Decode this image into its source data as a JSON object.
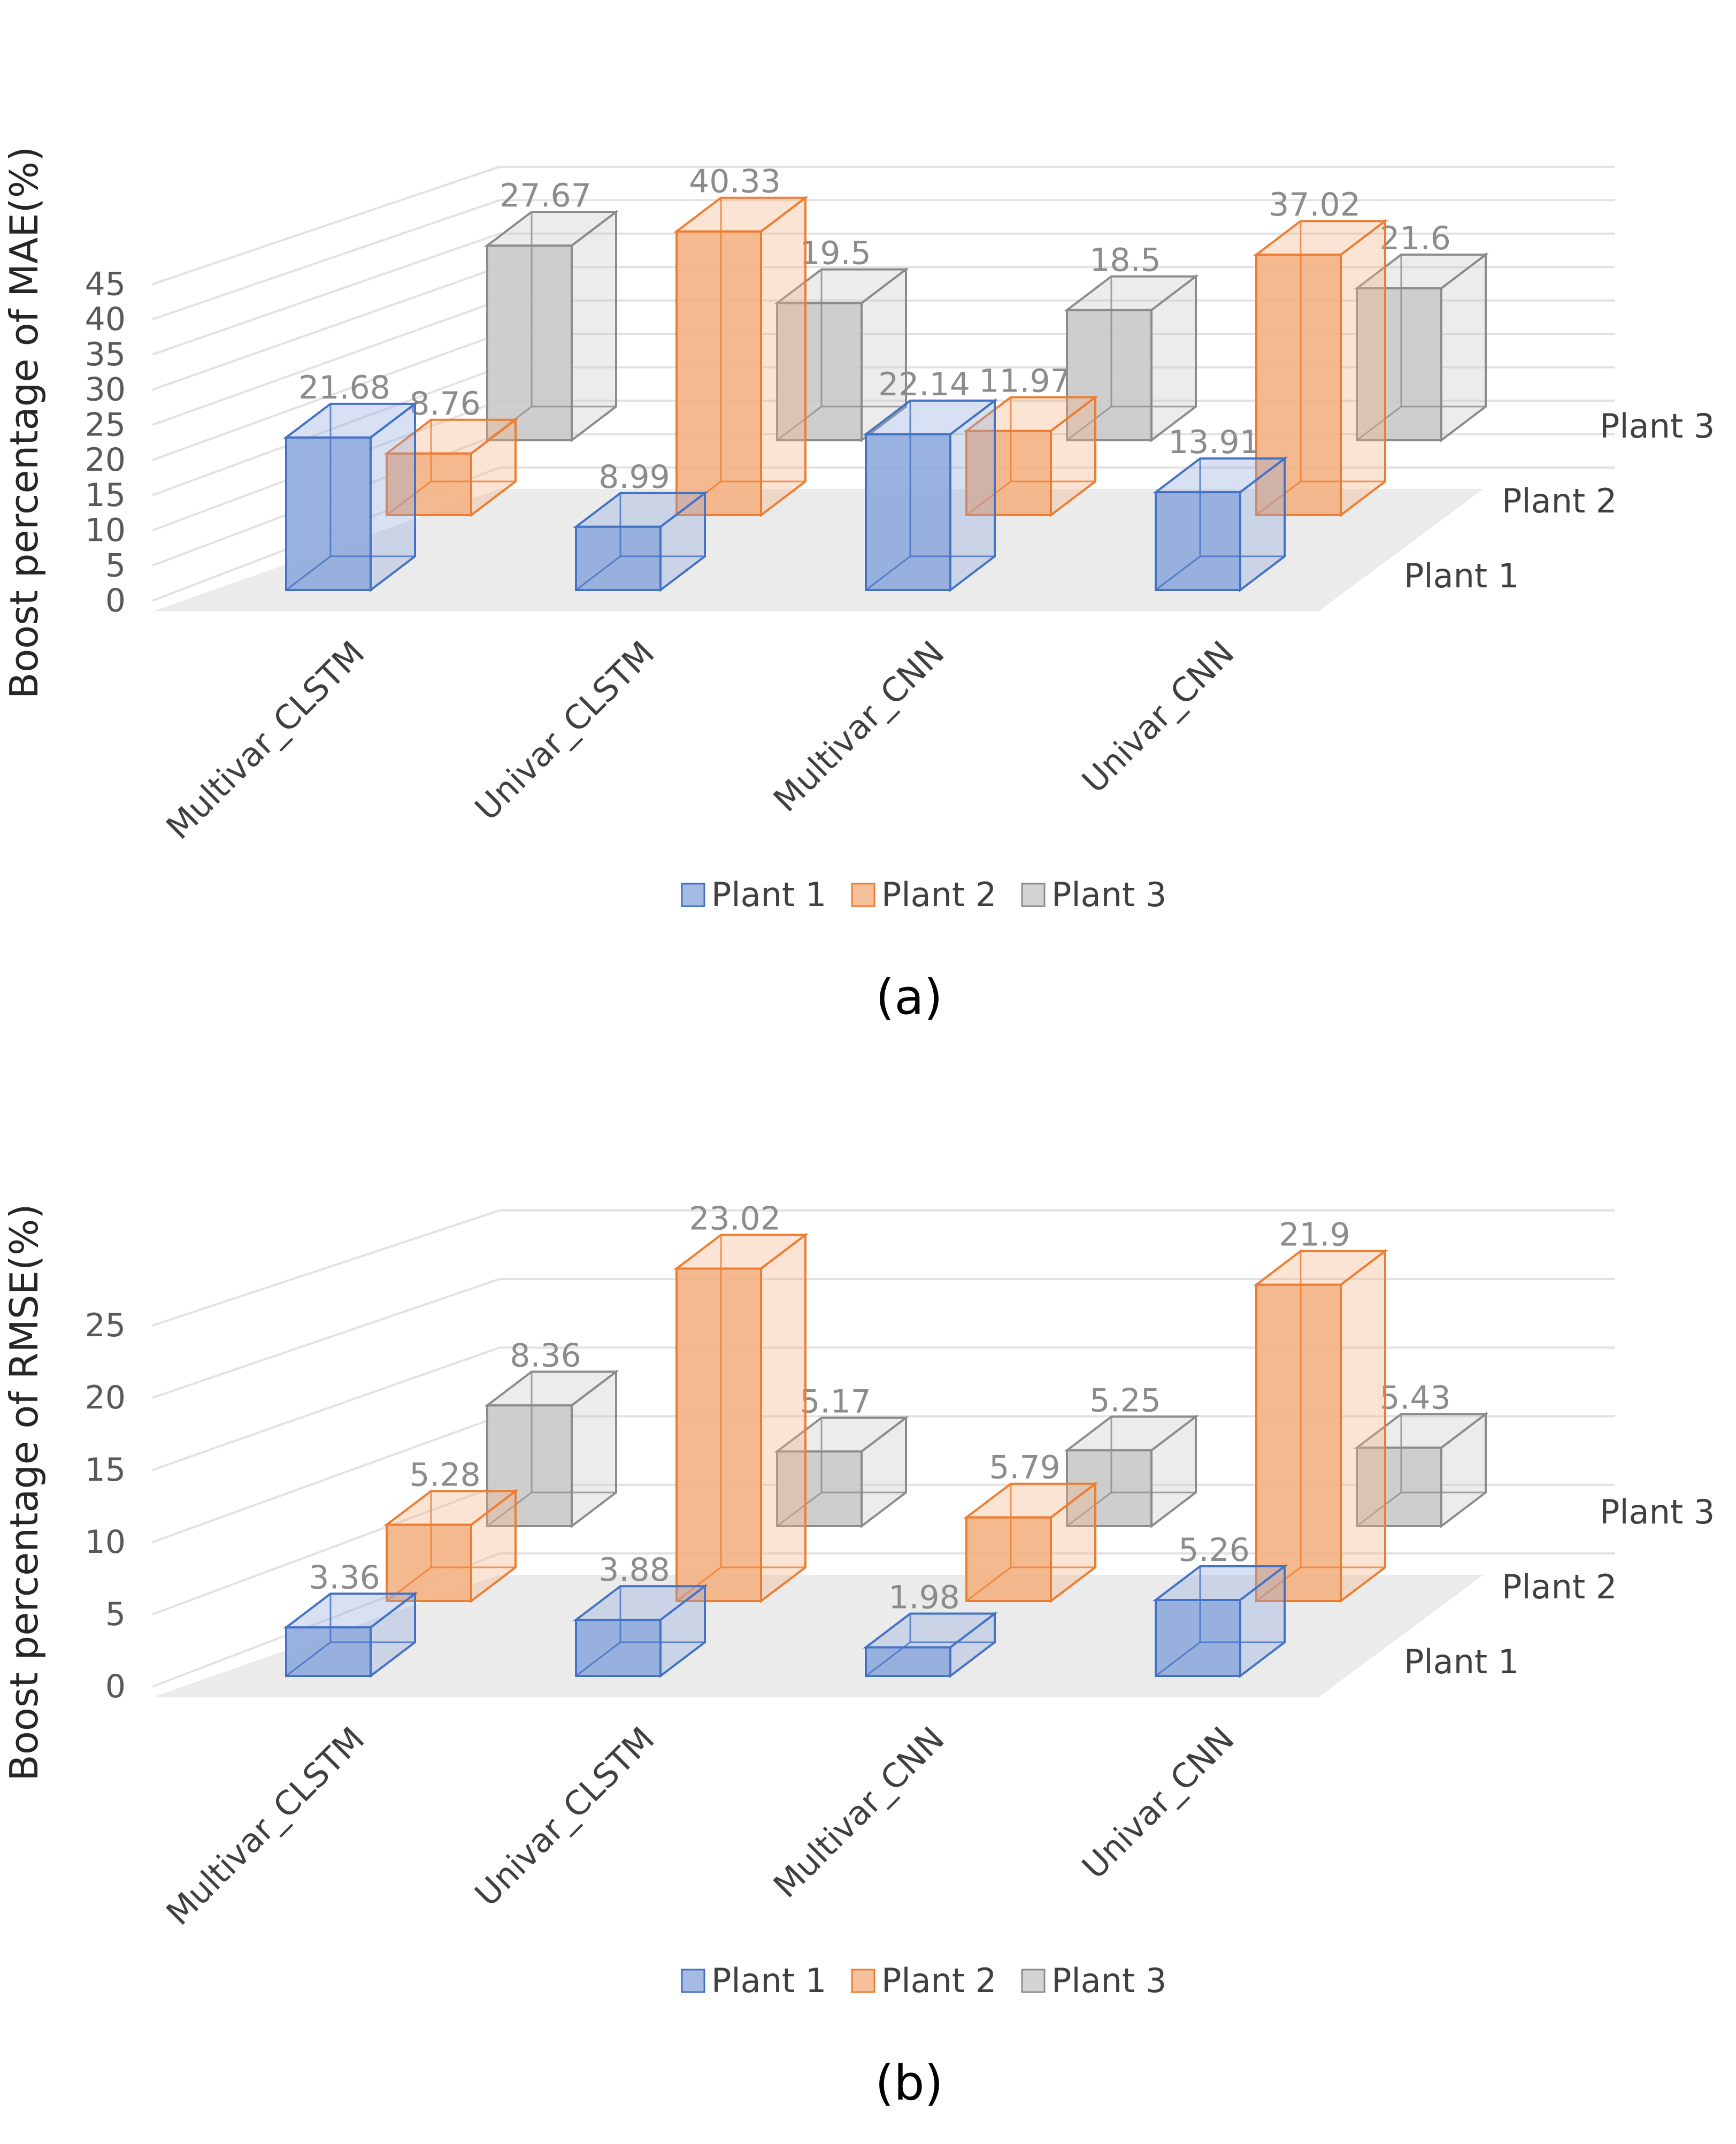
{
  "chart_data": [
    {
      "panel_label": "(a)",
      "type": "bar",
      "subtype": "3d-clustered-depth",
      "title": "",
      "ylabel": "Boost percentage of MAE(%)",
      "xlabel": "",
      "ylim": [
        0,
        45
      ],
      "yticks": [
        0,
        5,
        10,
        15,
        20,
        25,
        30,
        35,
        40,
        45
      ],
      "categories": [
        "Multivar_CLSTM",
        "Univar_CLSTM",
        "Multivar_CNN",
        "Univar_CNN"
      ],
      "depth_labels": [
        "Plant 1",
        "Plant 2",
        "Plant 3"
      ],
      "series": [
        {
          "name": "Plant 1",
          "color": "#4472C4",
          "fill": "#8FAADC",
          "values": [
            21.68,
            8.99,
            22.14,
            13.91
          ],
          "labels": [
            "21.68",
            "8.99",
            "22.14",
            "13.91"
          ]
        },
        {
          "name": "Plant 2",
          "color": "#ED7D31",
          "fill": "#F4B183",
          "values": [
            8.76,
            40.33,
            11.97,
            37.02
          ],
          "labels": [
            "8.76",
            "40.33",
            "11.97",
            "37.02"
          ]
        },
        {
          "name": "Plant 3",
          "color": "#8C8C8C",
          "fill": "#C9C9C9",
          "values": [
            27.67,
            19.5,
            18.5,
            21.6
          ],
          "labels": [
            "27.67",
            "19.5",
            "18.5",
            "21.6"
          ]
        }
      ],
      "legend": [
        "Plant 1",
        "Plant 2",
        "Plant 3"
      ],
      "legend_position": "bottom",
      "grid": true
    },
    {
      "panel_label": "(b)",
      "type": "bar",
      "subtype": "3d-clustered-depth",
      "title": "",
      "ylabel": "Boost percentage of RMSE(%)",
      "xlabel": "",
      "ylim": [
        0,
        25
      ],
      "yticks": [
        0,
        5,
        10,
        15,
        20,
        25
      ],
      "categories": [
        "Multivar_CLSTM",
        "Univar_CLSTM",
        "Multivar_CNN",
        "Univar_CNN"
      ],
      "depth_labels": [
        "Plant 1",
        "Plant 2",
        "Plant 3"
      ],
      "series": [
        {
          "name": "Plant 1",
          "color": "#4472C4",
          "fill": "#8FAADC",
          "values": [
            3.36,
            3.88,
            1.98,
            5.26
          ],
          "labels": [
            "3.36",
            "3.88",
            "1.98",
            "5.26"
          ]
        },
        {
          "name": "Plant 2",
          "color": "#ED7D31",
          "fill": "#F4B183",
          "values": [
            5.28,
            23.02,
            5.79,
            21.9
          ],
          "labels": [
            "5.28",
            "23.02",
            "5.79",
            "21.9"
          ]
        },
        {
          "name": "Plant 3",
          "color": "#8C8C8C",
          "fill": "#C9C9C9",
          "values": [
            8.36,
            5.17,
            5.25,
            5.43
          ],
          "labels": [
            "8.36",
            "5.17",
            "5.25",
            "5.43"
          ]
        }
      ],
      "legend": [
        "Plant 1",
        "Plant 2",
        "Plant 3"
      ],
      "legend_position": "bottom",
      "grid": true
    }
  ]
}
